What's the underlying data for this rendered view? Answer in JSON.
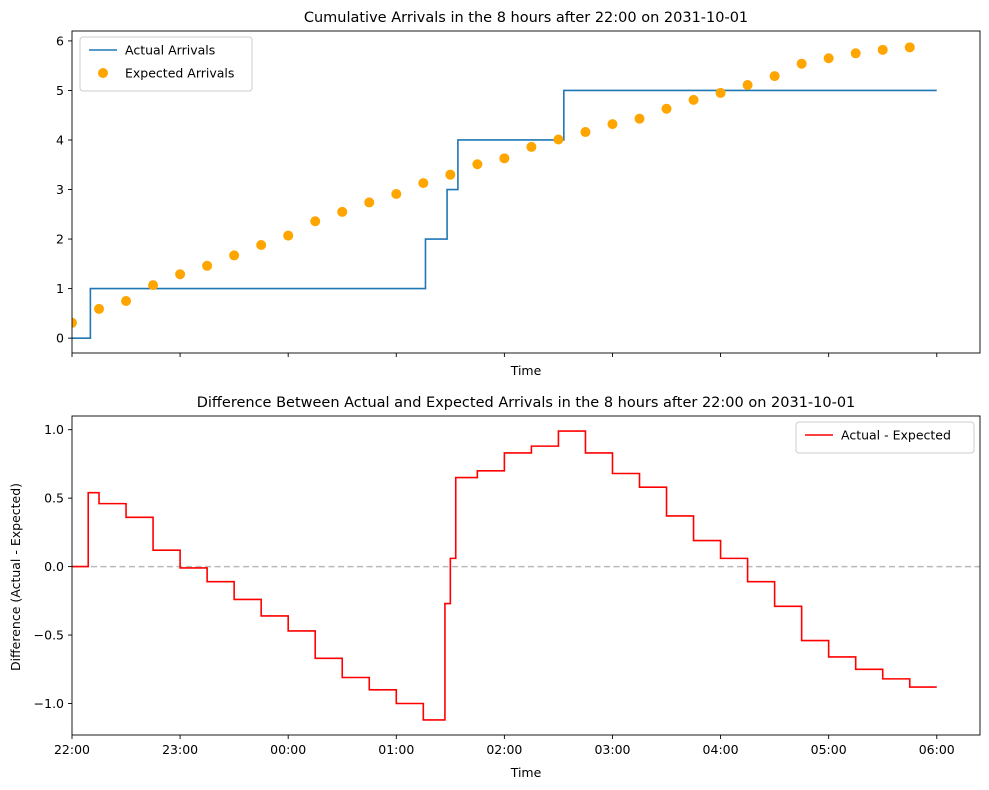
{
  "chart_data": [
    {
      "type": "line",
      "title": "Cumulative Arrivals in the 8 hours after 22:00 on 2031-10-01",
      "xlabel": "Time",
      "ylabel": "",
      "xlim_hours": [
        0,
        8.4
      ],
      "ylim": [
        -0.3,
        6.2
      ],
      "yticks": [
        0,
        1,
        2,
        3,
        4,
        5,
        6
      ],
      "xtick_hours": [
        0,
        1,
        2,
        3,
        4,
        5,
        6,
        7,
        8
      ],
      "xtick_labels_visible": false,
      "grid": false,
      "legend_position": "upper left",
      "series": [
        {
          "name": "Actual Arrivals",
          "kind": "step",
          "color": "#1f77b4",
          "x": [
            0,
            0.17,
            3.27,
            3.47,
            3.57,
            4.55,
            8.0
          ],
          "y": [
            0,
            1,
            2,
            3,
            4,
            5,
            5
          ]
        },
        {
          "name": "Expected Arrivals",
          "kind": "scatter",
          "color": "#ffa500",
          "x": [
            0,
            0.25,
            0.5,
            0.75,
            1.0,
            1.25,
            1.5,
            1.75,
            2.0,
            2.25,
            2.5,
            2.75,
            3.0,
            3.25,
            3.5,
            3.75,
            4.0,
            4.25,
            4.5,
            4.75,
            5.0,
            5.25,
            5.5,
            5.75,
            6.0,
            6.25,
            6.5,
            6.75,
            7.0,
            7.25,
            7.5,
            7.75
          ],
          "y": [
            0.31,
            0.59,
            0.75,
            1.07,
            1.29,
            1.46,
            1.67,
            1.88,
            2.07,
            2.36,
            2.55,
            2.74,
            2.91,
            3.13,
            3.3,
            3.51,
            3.63,
            3.86,
            4.01,
            4.16,
            4.32,
            4.43,
            4.63,
            4.81,
            4.95,
            5.11,
            5.29,
            5.54,
            5.65,
            5.75,
            5.82,
            5.87
          ]
        }
      ]
    },
    {
      "type": "line",
      "title": "Difference Between Actual and Expected Arrivals in the 8 hours after 22:00 on 2031-10-01",
      "xlabel": "Time",
      "ylabel": "Difference (Actual - Expected)",
      "xlim_hours": [
        0,
        8.4
      ],
      "ylim": [
        -1.23,
        1.1
      ],
      "yticks": [
        -1.0,
        -0.5,
        0.0,
        0.5,
        1.0
      ],
      "ytick_labels": [
        "−1.0",
        "−0.5",
        "0.0",
        "0.5",
        "1.0"
      ],
      "xtick_hours": [
        0,
        1,
        2,
        3,
        4,
        5,
        6,
        7,
        8
      ],
      "xtick_labels": [
        "22:00",
        "23:00",
        "00:00",
        "01:00",
        "02:00",
        "03:00",
        "04:00",
        "05:00",
        "06:00"
      ],
      "grid": false,
      "legend_position": "upper right",
      "reference_line": {
        "y": 0,
        "color": "#bbbbbb",
        "style": "dashed"
      },
      "series": [
        {
          "name": "Actual - Expected",
          "kind": "step",
          "color": "#ff0000",
          "x": [
            0,
            0.15,
            0.25,
            0.5,
            0.75,
            1.0,
            1.25,
            1.5,
            1.75,
            2.0,
            2.25,
            2.5,
            2.75,
            3.0,
            3.25,
            3.45,
            3.5,
            3.55,
            3.75,
            4.0,
            4.25,
            4.5,
            4.75,
            5.0,
            5.25,
            5.5,
            5.75,
            6.0,
            6.25,
            6.5,
            6.75,
            7.0,
            7.25,
            7.5,
            7.75,
            8.0
          ],
          "y": [
            0.0,
            0.54,
            0.46,
            0.36,
            0.12,
            -0.01,
            -0.11,
            -0.24,
            -0.36,
            -0.47,
            -0.67,
            -0.81,
            -0.9,
            -1.0,
            -1.12,
            -0.27,
            0.06,
            0.65,
            0.7,
            0.83,
            0.88,
            0.99,
            0.83,
            0.68,
            0.58,
            0.37,
            0.19,
            0.06,
            -0.11,
            -0.29,
            -0.54,
            -0.66,
            -0.75,
            -0.82,
            -0.88,
            -0.88
          ]
        }
      ]
    }
  ]
}
